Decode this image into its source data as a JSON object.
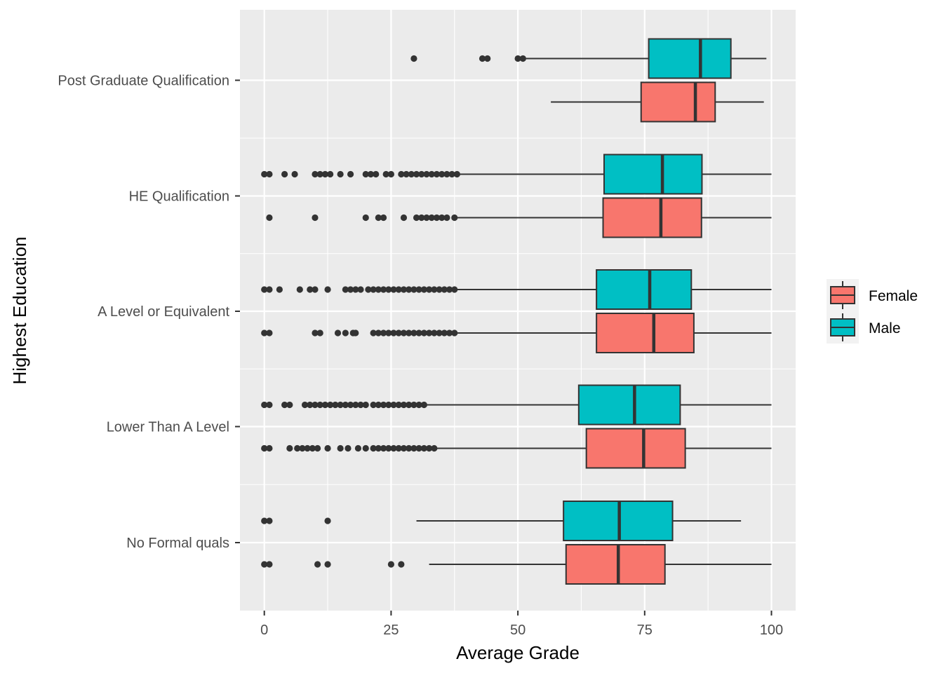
{
  "chart_data": {
    "type": "boxplot",
    "orientation": "horizontal",
    "xlabel": "Average Grade",
    "ylabel": "Highest Education",
    "xlim": [
      -4.7,
      104.7
    ],
    "xticks": [
      0,
      25,
      50,
      75,
      100
    ],
    "categories": [
      "No Formal quals",
      "Lower Than A Level",
      "A Level or Equivalent",
      "HE Qualification",
      "Post Graduate Qualification"
    ],
    "legend": {
      "position": "right",
      "entries": [
        {
          "name": "Female",
          "color": "#F8766D"
        },
        {
          "name": "Male",
          "color": "#00BFC4"
        }
      ]
    },
    "panel_background": "#EBEBEB",
    "grid": true,
    "series": [
      {
        "name": "Female",
        "color": "#F8766D",
        "boxes": [
          {
            "category": "No Formal quals",
            "whisker_low": 32.5,
            "q1": 59.5,
            "median": 69.8,
            "q3": 79.0,
            "whisker_high": 100,
            "outliers": [
              0,
              1,
              10.5,
              12.5,
              25,
              27
            ]
          },
          {
            "category": "Lower Than A Level",
            "whisker_low": 34,
            "q1": 63.5,
            "median": 74.8,
            "q3": 83.0,
            "whisker_high": 100,
            "outliers": [
              0,
              1,
              5,
              6.5,
              7.5,
              8.5,
              9.5,
              10.5,
              12.5,
              15,
              16.5,
              18.5,
              20,
              21.5,
              22.5,
              23.5,
              24.5,
              25.5,
              26.5,
              27.5,
              28.5,
              29.5,
              30.5,
              31.5,
              32.5,
              33.5
            ]
          },
          {
            "category": "A Level or Equivalent",
            "whisker_low": 38,
            "q1": 65.5,
            "median": 76.8,
            "q3": 84.7,
            "whisker_high": 100,
            "outliers": [
              0,
              1,
              10,
              11,
              14.5,
              16,
              17.5,
              18,
              21.5,
              22.5,
              23.5,
              24.5,
              25.5,
              26.5,
              27.5,
              28.5,
              29.5,
              30.5,
              31.5,
              32.5,
              33.5,
              34.5,
              35.5,
              36.5,
              37.5
            ]
          },
          {
            "category": "HE Qualification",
            "whisker_low": 38,
            "q1": 66.8,
            "median": 78.2,
            "q3": 86.2,
            "whisker_high": 100,
            "outliers": [
              1,
              10,
              20,
              22.5,
              23.5,
              27.5,
              30,
              31,
              32,
              33,
              34,
              35,
              36,
              37.5
            ]
          },
          {
            "category": "Post Graduate Qualification",
            "whisker_low": 56.5,
            "q1": 74.3,
            "median": 85.0,
            "q3": 88.9,
            "whisker_high": 98.5,
            "outliers": []
          }
        ]
      },
      {
        "name": "Male",
        "color": "#00BFC4",
        "boxes": [
          {
            "category": "No Formal quals",
            "whisker_low": 30,
            "q1": 59.0,
            "median": 70.0,
            "q3": 80.5,
            "whisker_high": 94,
            "outliers": [
              0,
              1,
              12.5
            ]
          },
          {
            "category": "Lower Than A Level",
            "whisker_low": 32,
            "q1": 62.0,
            "median": 73.0,
            "q3": 82.0,
            "whisker_high": 100,
            "outliers": [
              0,
              1,
              4,
              5,
              8,
              9,
              10,
              11,
              12,
              13,
              14,
              15,
              16,
              17,
              18,
              19,
              20,
              21.5,
              22.5,
              23.5,
              24.5,
              25.5,
              26.5,
              27.5,
              28.5,
              29.5,
              30.5,
              31.5
            ]
          },
          {
            "category": "A Level or Equivalent",
            "whisker_low": 38,
            "q1": 65.5,
            "median": 76.0,
            "q3": 84.2,
            "whisker_high": 100,
            "outliers": [
              0,
              1,
              3,
              7,
              9,
              10,
              12.5,
              16,
              17,
              18,
              19,
              20.5,
              21.5,
              22.5,
              23.5,
              24.5,
              25.5,
              26.5,
              27.5,
              28.5,
              29.5,
              30.5,
              31.5,
              32.5,
              33.5,
              34.5,
              35.5,
              36.5,
              37.5
            ]
          },
          {
            "category": "HE Qualification",
            "whisker_low": 38.5,
            "q1": 67.0,
            "median": 78.5,
            "q3": 86.3,
            "whisker_high": 100,
            "outliers": [
              0,
              1,
              4,
              6,
              10,
              11,
              12,
              13,
              15,
              17,
              20,
              21,
              22,
              24,
              25,
              27,
              28,
              29,
              30,
              31,
              32,
              33,
              34,
              35,
              36,
              37,
              38
            ]
          },
          {
            "category": "Post Graduate Qualification",
            "whisker_low": 51.5,
            "q1": 75.8,
            "median": 86.0,
            "q3": 92.0,
            "whisker_high": 99,
            "outliers": [
              29.5,
              43,
              44,
              50,
              51
            ]
          }
        ]
      }
    ]
  }
}
